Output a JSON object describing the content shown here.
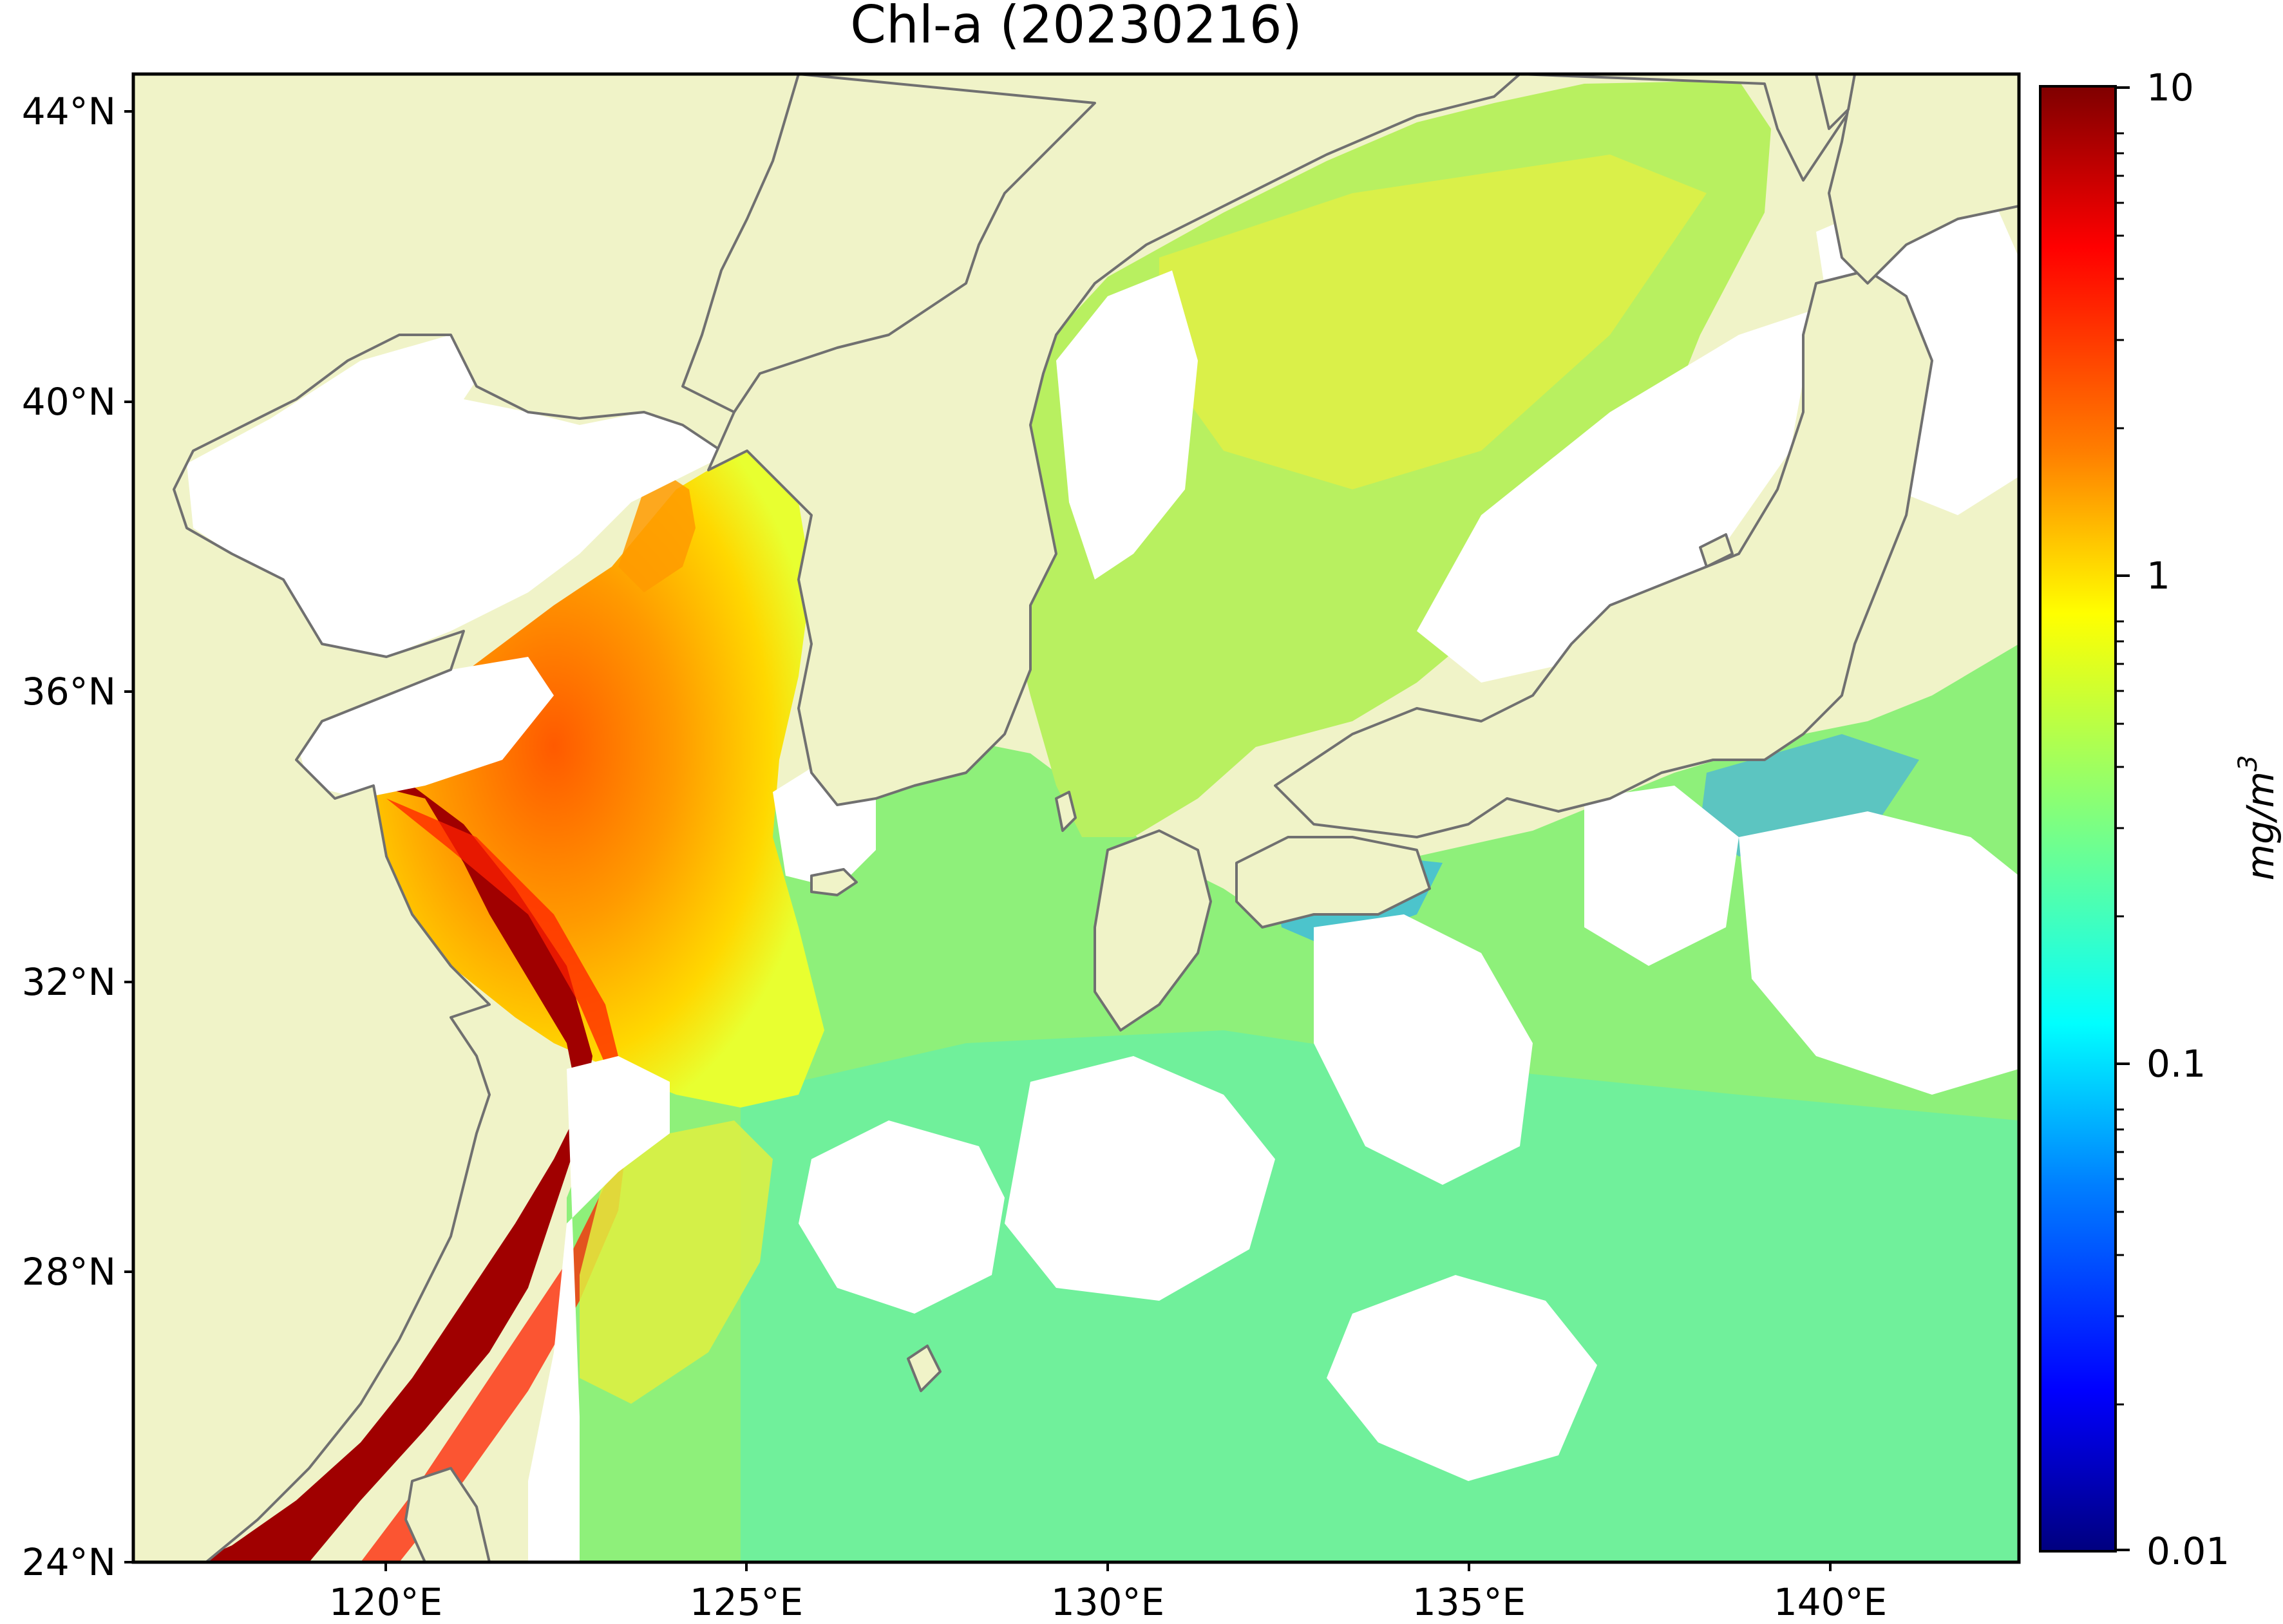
{
  "title": "Chl-a (20230216)",
  "map": {
    "lat_ticks": [
      "44°N",
      "40°N",
      "36°N",
      "32°N",
      "28°N",
      "24°N"
    ],
    "lon_ticks": [
      "120°E",
      "125°E",
      "130°E",
      "135°E",
      "140°E"
    ],
    "lat_range": [
      24,
      44.5
    ],
    "lon_range": [
      116.5,
      143
    ],
    "colors": {
      "land": "#f0f3c8",
      "coastline": "#707070",
      "missing_data": "#ffffff"
    }
  },
  "colorbar": {
    "label": "mg/m",
    "label_superscript": "3",
    "ticks": [
      "10",
      "1",
      "0.1",
      "0.01"
    ],
    "scale": "log",
    "range": [
      0.01,
      10
    ],
    "colormap": "jet",
    "colors": [
      "#00007f",
      "#0000ff",
      "#007fff",
      "#00ffff",
      "#7fff7f",
      "#ffff00",
      "#ff7f00",
      "#ff0000",
      "#7f0000"
    ]
  }
}
